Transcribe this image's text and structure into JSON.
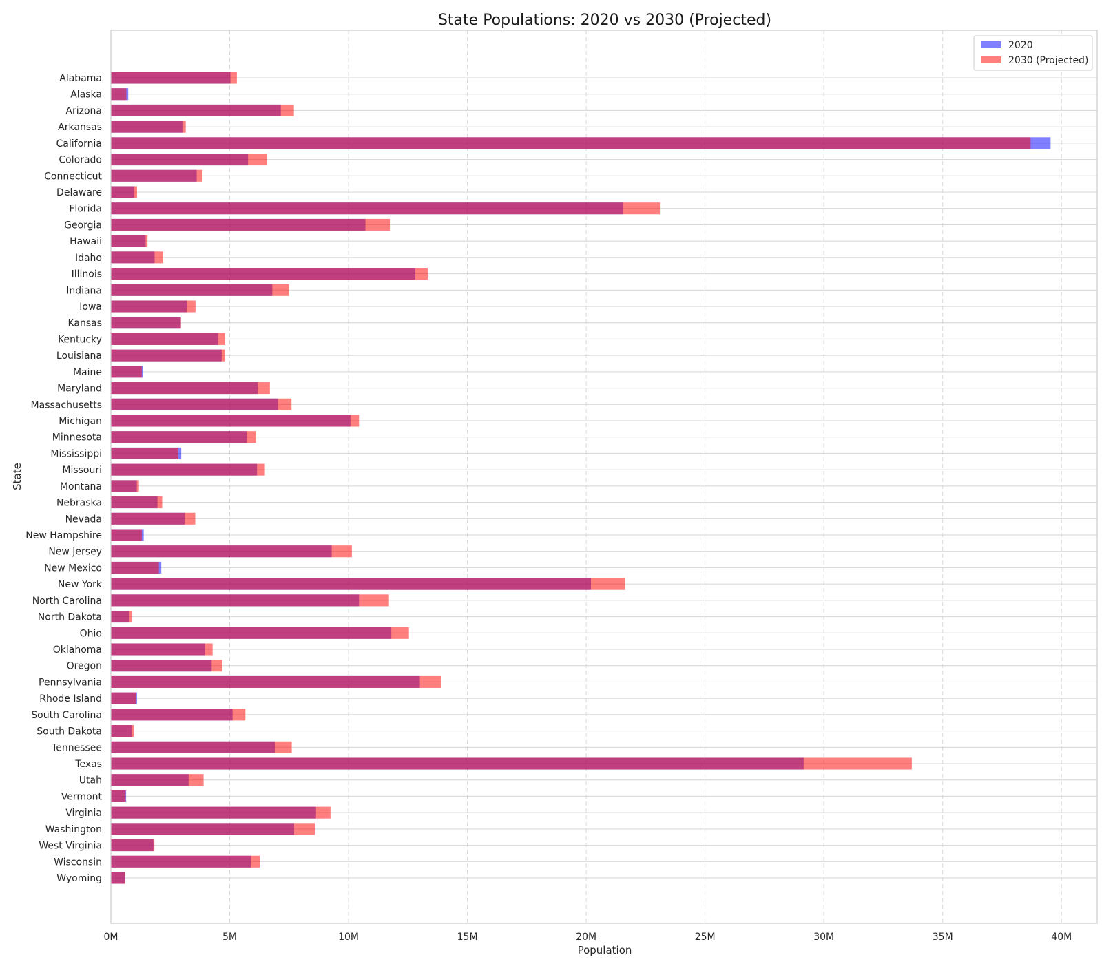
{
  "chart_data": {
    "type": "bar",
    "orientation": "horizontal",
    "title": "State Populations: 2020 vs 2030 (Projected)",
    "xlabel": "Population",
    "ylabel": "State",
    "xlim": [
      0,
      41500000
    ],
    "xticks": [
      0,
      5000000,
      10000000,
      15000000,
      20000000,
      25000000,
      30000000,
      35000000,
      40000000
    ],
    "xtick_labels": [
      "0M",
      "5M",
      "10M",
      "15M",
      "20M",
      "25M",
      "30M",
      "35M",
      "40M"
    ],
    "grid": true,
    "legend_position": "top-right",
    "categories": [
      "Alabama",
      "Alaska",
      "Arizona",
      "Arkansas",
      "California",
      "Colorado",
      "Connecticut",
      "Delaware",
      "Florida",
      "Georgia",
      "Hawaii",
      "Idaho",
      "Illinois",
      "Indiana",
      "Iowa",
      "Kansas",
      "Kentucky",
      "Louisiana",
      "Maine",
      "Maryland",
      "Massachusetts",
      "Michigan",
      "Minnesota",
      "Mississippi",
      "Missouri",
      "Montana",
      "Nebraska",
      "Nevada",
      "New Hampshire",
      "New Jersey",
      "New Mexico",
      "New York",
      "North Carolina",
      "North Dakota",
      "Ohio",
      "Oklahoma",
      "Oregon",
      "Pennsylvania",
      "Rhode Island",
      "South Carolina",
      "South Dakota",
      "Tennessee",
      "Texas",
      "Utah",
      "Vermont",
      "Virginia",
      "Washington",
      "West Virginia",
      "Wisconsin",
      "Wyoming"
    ],
    "series": [
      {
        "name": "2020",
        "color": "#0000ff",
        "opacity": 0.5,
        "values": [
          5030000,
          730000,
          7150000,
          3010000,
          39540000,
          5770000,
          3610000,
          990000,
          21540000,
          10710000,
          1460000,
          1840000,
          12810000,
          6790000,
          3190000,
          2940000,
          4510000,
          4660000,
          1360000,
          6180000,
          7030000,
          10080000,
          5710000,
          2960000,
          6150000,
          1090000,
          1960000,
          3110000,
          1380000,
          9290000,
          2120000,
          20200000,
          10440000,
          780000,
          11800000,
          3960000,
          4240000,
          13000000,
          1100000,
          5120000,
          890000,
          6910000,
          29150000,
          3270000,
          640000,
          8630000,
          7710000,
          1790000,
          5890000,
          580000
        ]
      },
      {
        "name": "2030 (Projected)",
        "color": "#ff0000",
        "opacity": 0.5,
        "values": [
          5300000,
          650000,
          7700000,
          3150000,
          38700000,
          6560000,
          3850000,
          1100000,
          23100000,
          11740000,
          1540000,
          2200000,
          13330000,
          7500000,
          3560000,
          2950000,
          4800000,
          4800000,
          1300000,
          6690000,
          7600000,
          10440000,
          6110000,
          2840000,
          6480000,
          1180000,
          2160000,
          3550000,
          1300000,
          10140000,
          2020000,
          21640000,
          11700000,
          900000,
          12540000,
          4280000,
          4690000,
          13880000,
          1070000,
          5660000,
          960000,
          7610000,
          33700000,
          3900000,
          620000,
          9240000,
          8580000,
          1830000,
          6260000,
          600000
        ]
      }
    ]
  }
}
